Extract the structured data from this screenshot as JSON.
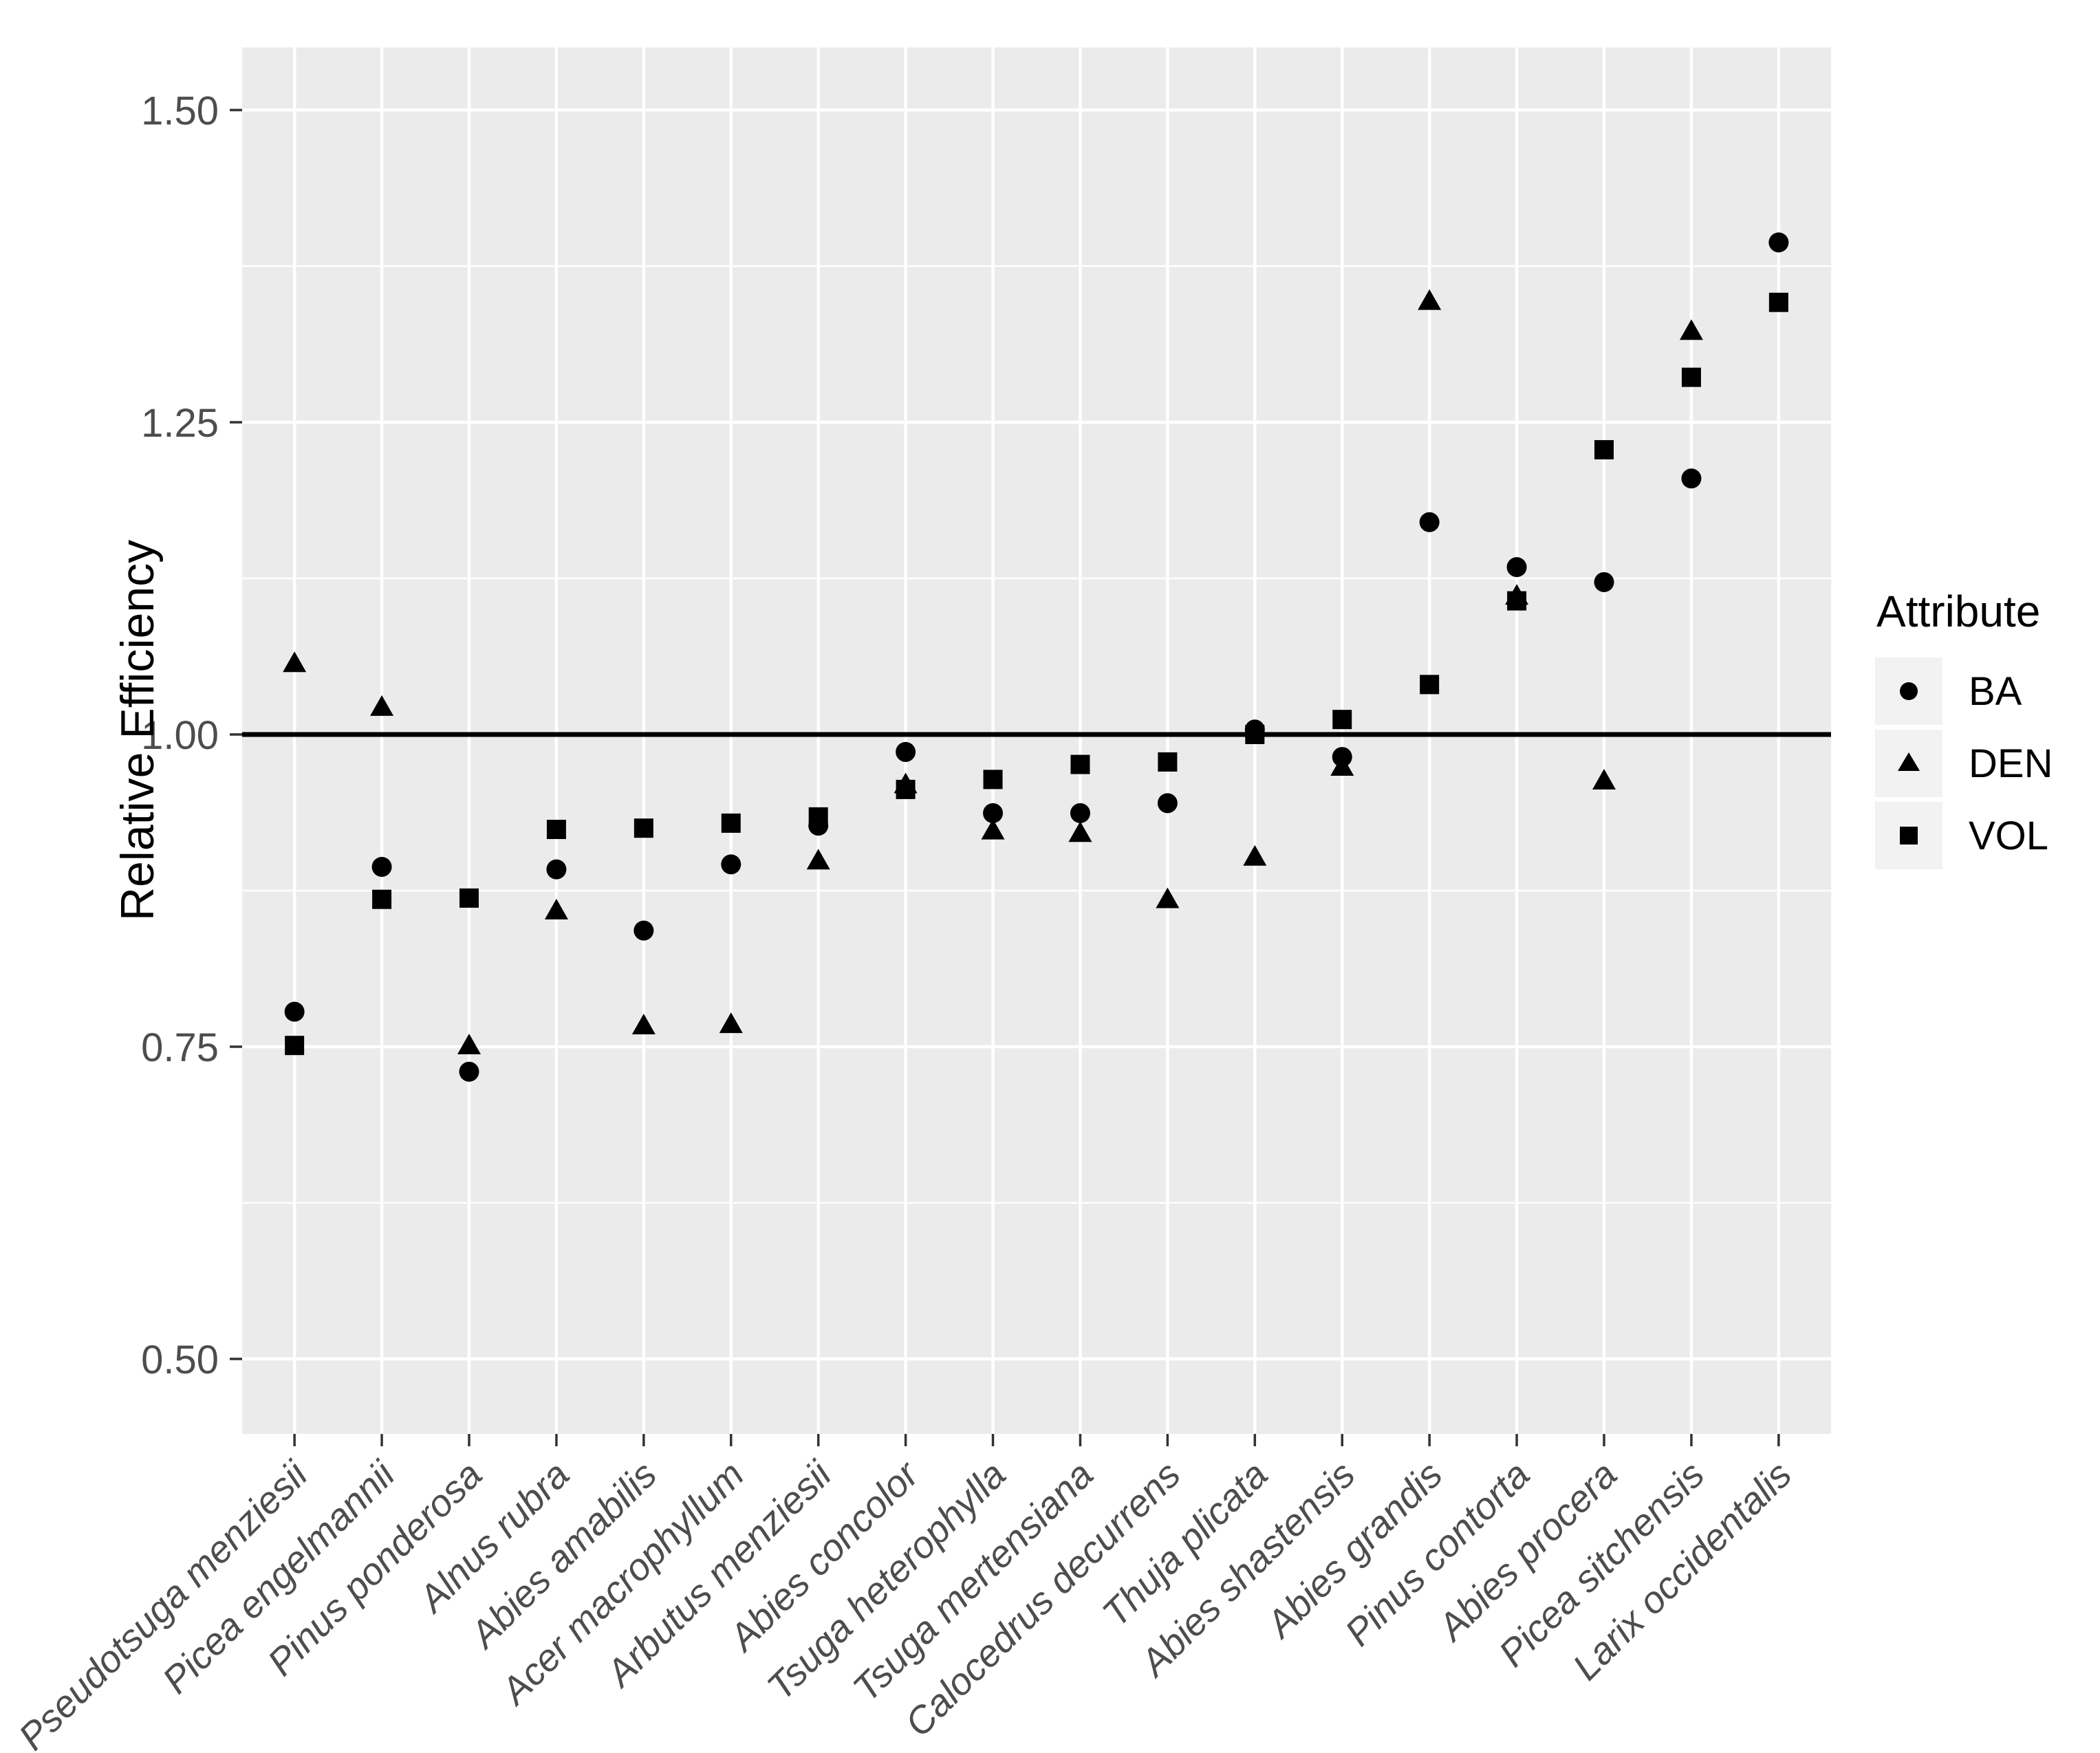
{
  "page": {
    "background": "#FFFFFF"
  },
  "chart_data": {
    "type": "scatter",
    "title": "",
    "xlabel": "",
    "ylabel": "Relative Efficiency",
    "ylim": [
      0.44,
      1.555
    ],
    "ytick_labels": [
      "0.50",
      "0.75",
      "1.00",
      "1.25",
      "1.50"
    ],
    "ytick_values": [
      0.5,
      0.75,
      1.0,
      1.25,
      1.5
    ],
    "minor_gridline_values": [
      0.625,
      0.875,
      1.125,
      1.375
    ],
    "reference_line_y": 1.0,
    "grid": "white major and minor gridlines on gray panel (ggplot default)",
    "panel_fill": "#EBEBEB",
    "gridline_color": "#FFFFFF",
    "point_color": "#000000",
    "axis_text_color": "#4D4D4D",
    "tick_mark_color": "#333333",
    "reference_line_color": "#000000",
    "categories": [
      "Pseudotsuga menziesii",
      "Picea engelmannii",
      "Pinus ponderosa",
      "Alnus rubra",
      "Abies amabilis",
      "Acer macrophyllum",
      "Arbutus menziesii",
      "Abies concolor",
      "Tsuga heterophylla",
      "Tsuga mertensiana",
      "Calocedrus decurrens",
      "Thuja plicata",
      "Abies shastensis",
      "Abies grandis",
      "Pinus contorta",
      "Abies procera",
      "Picea sitchensis",
      "Larix occidentalis"
    ],
    "series": [
      {
        "name": "BA",
        "marker": "circle",
        "values": [
          0.778,
          0.894,
          0.73,
          0.892,
          0.843,
          0.896,
          0.927,
          0.986,
          0.937,
          0.937,
          0.945,
          1.004,
          0.982,
          1.17,
          1.134,
          1.122,
          1.205,
          1.394
        ]
      },
      {
        "name": "DEN",
        "marker": "triangle",
        "values": [
          1.056,
          1.021,
          0.75,
          0.858,
          0.766,
          0.767,
          0.898,
          0.959,
          0.922,
          0.92,
          0.867,
          0.901,
          0.973,
          1.346,
          1.11,
          0.962,
          1.322,
          null
        ]
      },
      {
        "name": "VOL",
        "marker": "square",
        "values": [
          0.751,
          0.868,
          0.869,
          0.924,
          0.925,
          0.929,
          0.934,
          0.956,
          0.964,
          0.976,
          0.978,
          1.0,
          1.012,
          1.04,
          1.107,
          1.228,
          1.286,
          1.346
        ]
      }
    ],
    "legend": {
      "title": "Attribute",
      "position": "right",
      "key_fill": "#F2F2F2",
      "entries": [
        {
          "label": "BA",
          "marker": "circle"
        },
        {
          "label": "DEN",
          "marker": "triangle"
        },
        {
          "label": "VOL",
          "marker": "square"
        }
      ]
    }
  }
}
